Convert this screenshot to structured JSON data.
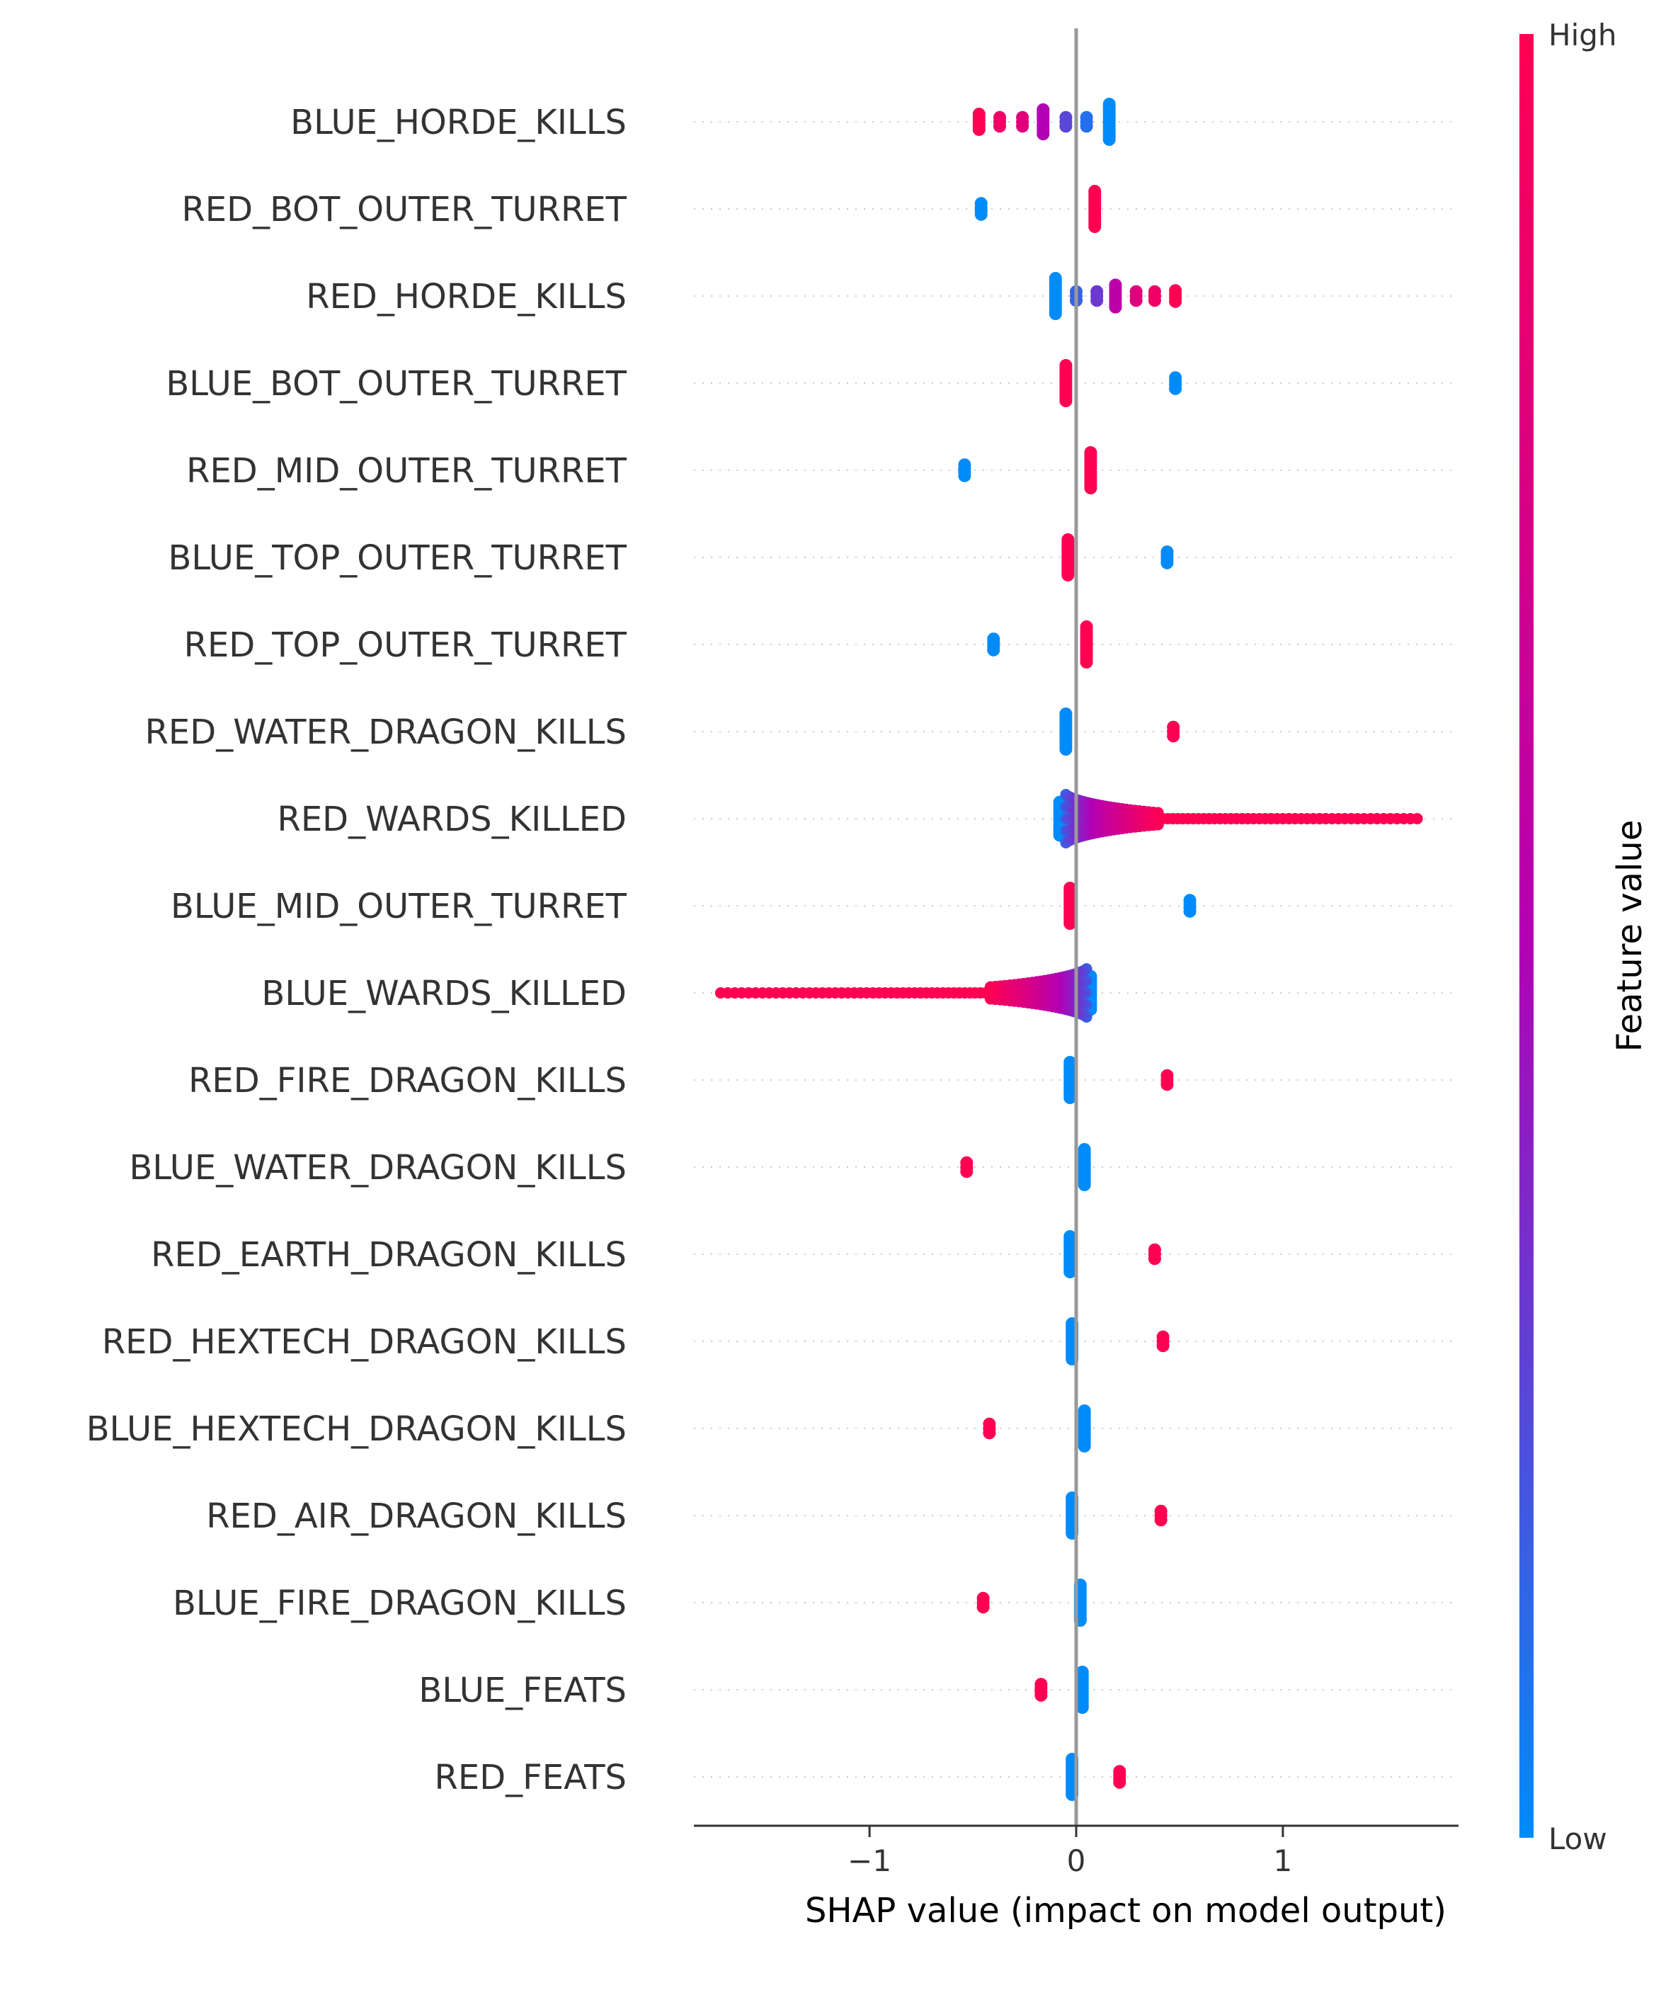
{
  "chart_data": {
    "type": "scatter",
    "subtype": "shap-beeswarm",
    "title": "",
    "xlabel": "SHAP value (impact on model output)",
    "ylabel": "",
    "xlim": [
      -1.85,
      1.85
    ],
    "xticks": [
      {
        "value": -1,
        "label": "−1"
      },
      {
        "value": 0,
        "label": "0"
      },
      {
        "value": 1,
        "label": "1"
      }
    ],
    "zero_line": true,
    "grid": false,
    "colorbar": {
      "title": "Feature value",
      "high_label": "High",
      "low_label": "Low",
      "high_color": "#ff0052",
      "mid_color": "#b300b3",
      "low_color": "#008bfb"
    },
    "features": [
      {
        "name": "BLUE_HORDE_KILLS",
        "clusters": [
          {
            "x": 0.16,
            "v": 0.0,
            "spread": 0.32,
            "n": 14
          },
          {
            "x": 0.05,
            "v": 0.1,
            "spread": 0.08,
            "n": 3
          },
          {
            "x": -0.05,
            "v": 0.25,
            "spread": 0.08,
            "n": 3
          },
          {
            "x": -0.16,
            "v": 0.5,
            "spread": 0.22,
            "n": 10
          },
          {
            "x": -0.26,
            "v": 0.8,
            "spread": 0.08,
            "n": 3
          },
          {
            "x": -0.37,
            "v": 0.9,
            "spread": 0.08,
            "n": 3
          },
          {
            "x": -0.47,
            "v": 1.0,
            "spread": 0.14,
            "n": 6
          }
        ]
      },
      {
        "name": "RED_BOT_OUTER_TURRET",
        "clusters": [
          {
            "x": 0.09,
            "v": 1.0,
            "spread": 0.32,
            "n": 14
          },
          {
            "x": -0.46,
            "v": 0.0,
            "spread": 0.1,
            "n": 4
          }
        ]
      },
      {
        "name": "RED_HORDE_KILLS",
        "clusters": [
          {
            "x": -0.1,
            "v": 0.0,
            "spread": 0.32,
            "n": 14
          },
          {
            "x": 0.0,
            "v": 0.15,
            "spread": 0.08,
            "n": 3
          },
          {
            "x": 0.1,
            "v": 0.3,
            "spread": 0.08,
            "n": 3
          },
          {
            "x": 0.19,
            "v": 0.55,
            "spread": 0.2,
            "n": 8
          },
          {
            "x": 0.29,
            "v": 0.8,
            "spread": 0.08,
            "n": 3
          },
          {
            "x": 0.38,
            "v": 0.9,
            "spread": 0.08,
            "n": 3
          },
          {
            "x": 0.48,
            "v": 1.0,
            "spread": 0.1,
            "n": 4
          }
        ]
      },
      {
        "name": "BLUE_BOT_OUTER_TURRET",
        "clusters": [
          {
            "x": -0.05,
            "v": 1.0,
            "spread": 0.32,
            "n": 14
          },
          {
            "x": 0.48,
            "v": 0.0,
            "spread": 0.1,
            "n": 4
          }
        ]
      },
      {
        "name": "RED_MID_OUTER_TURRET",
        "clusters": [
          {
            "x": 0.07,
            "v": 1.0,
            "spread": 0.32,
            "n": 14
          },
          {
            "x": -0.54,
            "v": 0.0,
            "spread": 0.1,
            "n": 4
          }
        ]
      },
      {
        "name": "BLUE_TOP_OUTER_TURRET",
        "clusters": [
          {
            "x": -0.04,
            "v": 1.0,
            "spread": 0.32,
            "n": 14
          },
          {
            "x": 0.44,
            "v": 0.0,
            "spread": 0.1,
            "n": 4
          }
        ]
      },
      {
        "name": "RED_TOP_OUTER_TURRET",
        "clusters": [
          {
            "x": 0.05,
            "v": 1.0,
            "spread": 0.32,
            "n": 14
          },
          {
            "x": -0.4,
            "v": 0.0,
            "spread": 0.1,
            "n": 4
          }
        ]
      },
      {
        "name": "RED_WATER_DRAGON_KILLS",
        "clusters": [
          {
            "x": -0.05,
            "v": 0.0,
            "spread": 0.32,
            "n": 14
          },
          {
            "x": 0.47,
            "v": 1.0,
            "spread": 0.08,
            "n": 3
          }
        ]
      },
      {
        "name": "RED_WARDS_KILLED",
        "clusters": [
          {
            "x": -0.08,
            "v": 0.0,
            "spread": 0.3,
            "n": 14
          }
        ],
        "tail": {
          "from": -0.05,
          "to": 1.65,
          "dir": 1
        }
      },
      {
        "name": "BLUE_MID_OUTER_TURRET",
        "clusters": [
          {
            "x": -0.03,
            "v": 1.0,
            "spread": 0.32,
            "n": 14
          },
          {
            "x": 0.55,
            "v": 0.0,
            "spread": 0.1,
            "n": 4
          }
        ]
      },
      {
        "name": "BLUE_WARDS_KILLED",
        "clusters": [
          {
            "x": 0.07,
            "v": 0.0,
            "spread": 0.3,
            "n": 14
          }
        ],
        "tail": {
          "from": 0.05,
          "to": -1.72,
          "dir": -1
        }
      },
      {
        "name": "RED_FIRE_DRAGON_KILLS",
        "clusters": [
          {
            "x": -0.03,
            "v": 0.0,
            "spread": 0.32,
            "n": 14
          },
          {
            "x": 0.44,
            "v": 1.0,
            "spread": 0.08,
            "n": 3
          }
        ]
      },
      {
        "name": "BLUE_WATER_DRAGON_KILLS",
        "clusters": [
          {
            "x": 0.04,
            "v": 0.0,
            "spread": 0.32,
            "n": 14
          },
          {
            "x": -0.53,
            "v": 1.0,
            "spread": 0.08,
            "n": 3
          }
        ]
      },
      {
        "name": "RED_EARTH_DRAGON_KILLS",
        "clusters": [
          {
            "x": -0.03,
            "v": 0.0,
            "spread": 0.32,
            "n": 14
          },
          {
            "x": 0.38,
            "v": 1.0,
            "spread": 0.08,
            "n": 3
          }
        ]
      },
      {
        "name": "RED_HEXTECH_DRAGON_KILLS",
        "clusters": [
          {
            "x": -0.02,
            "v": 0.0,
            "spread": 0.32,
            "n": 14
          },
          {
            "x": 0.42,
            "v": 1.0,
            "spread": 0.08,
            "n": 3
          }
        ]
      },
      {
        "name": "BLUE_HEXTECH_DRAGON_KILLS",
        "clusters": [
          {
            "x": 0.04,
            "v": 0.0,
            "spread": 0.32,
            "n": 14
          },
          {
            "x": -0.42,
            "v": 1.0,
            "spread": 0.08,
            "n": 3
          }
        ]
      },
      {
        "name": "RED_AIR_DRAGON_KILLS",
        "clusters": [
          {
            "x": -0.02,
            "v": 0.0,
            "spread": 0.32,
            "n": 14
          },
          {
            "x": 0.41,
            "v": 1.0,
            "spread": 0.08,
            "n": 3
          }
        ]
      },
      {
        "name": "BLUE_FIRE_DRAGON_KILLS",
        "clusters": [
          {
            "x": 0.02,
            "v": 0.0,
            "spread": 0.32,
            "n": 14
          },
          {
            "x": -0.45,
            "v": 1.0,
            "spread": 0.08,
            "n": 3
          }
        ]
      },
      {
        "name": "BLUE_FEATS",
        "clusters": [
          {
            "x": 0.03,
            "v": 0.0,
            "spread": 0.32,
            "n": 14
          },
          {
            "x": -0.17,
            "v": 1.0,
            "spread": 0.1,
            "n": 4
          }
        ]
      },
      {
        "name": "RED_FEATS",
        "clusters": [
          {
            "x": -0.02,
            "v": 0.0,
            "spread": 0.32,
            "n": 14
          },
          {
            "x": 0.21,
            "v": 1.0,
            "spread": 0.1,
            "n": 4
          }
        ]
      }
    ]
  }
}
